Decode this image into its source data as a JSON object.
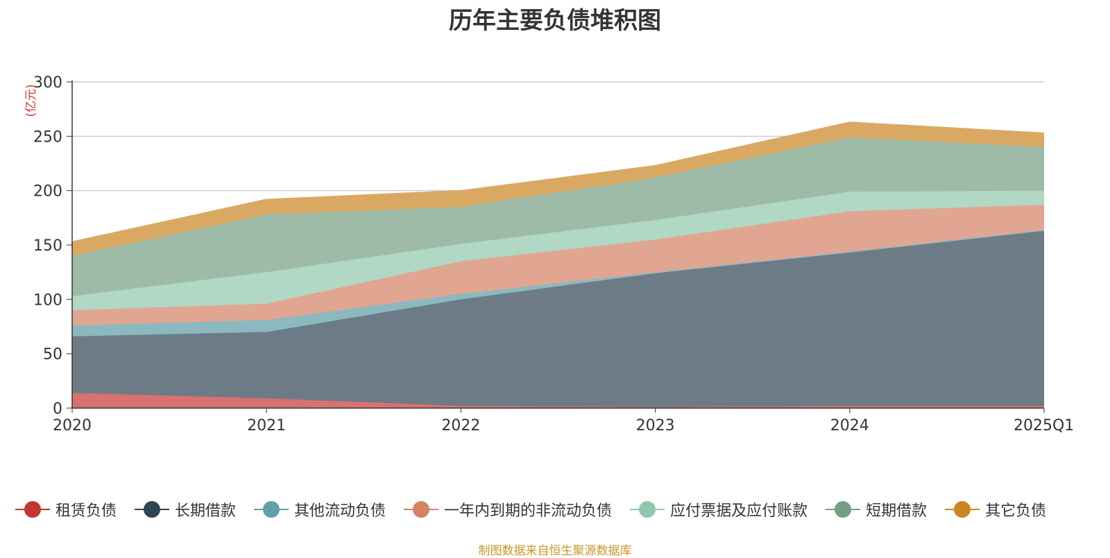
{
  "chart_data": {
    "type": "area",
    "stacked": true,
    "title": "历年主要负债堆积图",
    "unit_label": "(亿元)",
    "categories": [
      "2020",
      "2021",
      "2022",
      "2023",
      "2024",
      "2025Q1"
    ],
    "ylim": [
      0,
      300
    ],
    "yticks": [
      0,
      50,
      100,
      150,
      200,
      250,
      300
    ],
    "grid": true,
    "legend_position": "bottom",
    "series": [
      {
        "name": "租赁负债",
        "color": "#c23531",
        "fill": "#d8716f",
        "values": [
          14,
          9,
          2,
          1,
          2,
          2
        ]
      },
      {
        "name": "长期借款",
        "color": "#2f4554",
        "fill": "#6d7b86",
        "values": [
          52,
          61,
          98,
          123,
          141,
          161
        ]
      },
      {
        "name": "其他流动负债",
        "color": "#61a0a8",
        "fill": "#8bb9bf",
        "values": [
          10,
          11,
          5,
          1,
          1,
          1
        ]
      },
      {
        "name": "一年内到期的非流动负债",
        "color": "#d48265",
        "fill": "#e1a691",
        "values": [
          14,
          15,
          30,
          30,
          37,
          23
        ]
      },
      {
        "name": "应付票据及应付账款",
        "color": "#91c7ae",
        "fill": "#b1d7c5",
        "values": [
          13,
          29,
          16,
          18,
          18,
          13
        ]
      },
      {
        "name": "短期借款",
        "color": "#749f83",
        "fill": "#9dbba7",
        "values": [
          37,
          53,
          34,
          39,
          50,
          40
        ]
      },
      {
        "name": "其它负债",
        "color": "#ca8622",
        "fill": "#d9a963",
        "values": [
          13,
          14,
          15,
          11,
          14,
          13
        ]
      }
    ],
    "source_note": "制图数据来自恒生聚源数据库"
  }
}
